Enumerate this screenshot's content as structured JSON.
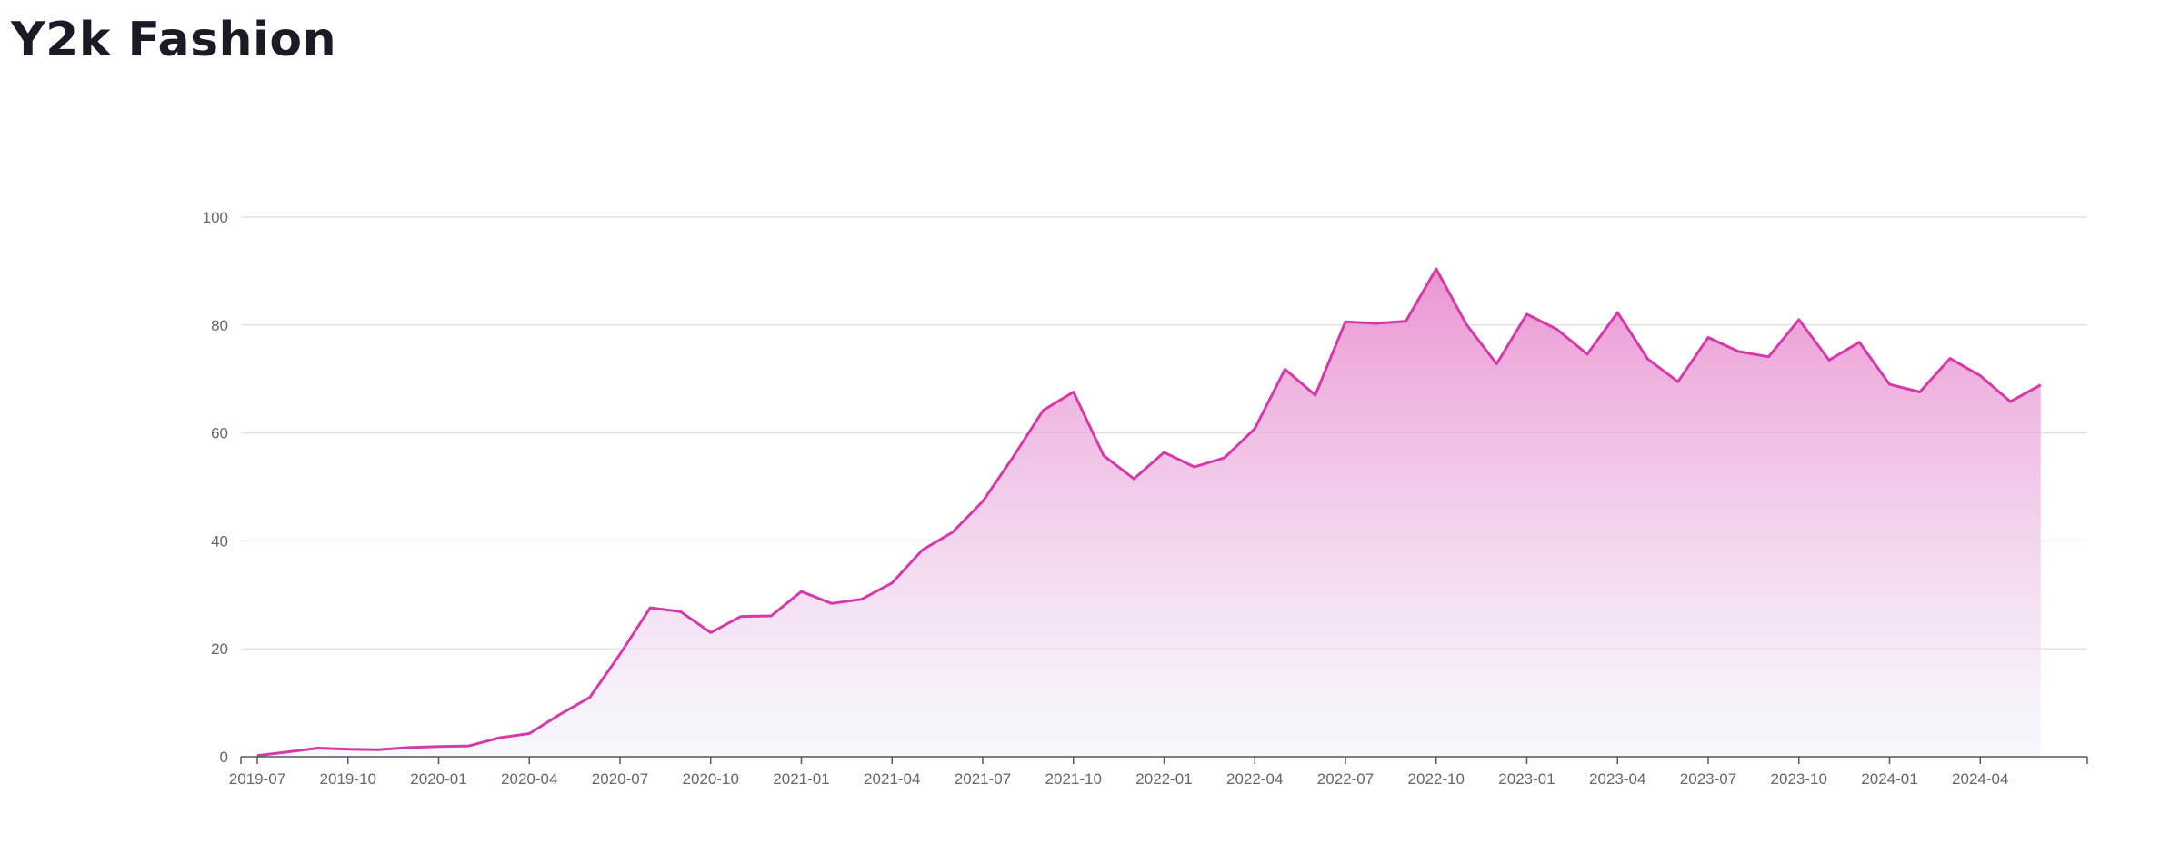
{
  "title": "Y2k Fashion",
  "colors": {
    "line": "#d63aa8",
    "fill_top": "#e98ccf",
    "fill_bottom": "#f3f3fb",
    "grid": "#e3e3e8",
    "axis": "#555560"
  },
  "chart_data": {
    "type": "area",
    "title": "Y2k Fashion",
    "xlabel": "",
    "ylabel": "",
    "ylim": [
      0,
      100
    ],
    "yticks": [
      0,
      20,
      40,
      60,
      80,
      100
    ],
    "xlim": [
      "2019-07",
      "2024-07"
    ],
    "xticks": [
      "2019-07",
      "2019-10",
      "2020-01",
      "2020-04",
      "2020-07",
      "2020-10",
      "2021-01",
      "2021-04",
      "2021-07",
      "2021-10",
      "2022-01",
      "2022-04",
      "2022-07",
      "2022-10",
      "2023-01",
      "2023-04",
      "2023-07",
      "2023-10",
      "2024-01",
      "2024-04"
    ],
    "grid": true,
    "legend": "none",
    "x": [
      "2019-07",
      "2019-08",
      "2019-09",
      "2019-10",
      "2019-11",
      "2019-12",
      "2020-01",
      "2020-02",
      "2020-03",
      "2020-04",
      "2020-05",
      "2020-06",
      "2020-07",
      "2020-08",
      "2020-09",
      "2020-10",
      "2020-11",
      "2020-12",
      "2021-01",
      "2021-02",
      "2021-03",
      "2021-04",
      "2021-05",
      "2021-06",
      "2021-07",
      "2021-08",
      "2021-09",
      "2021-10",
      "2021-11",
      "2021-12",
      "2022-01",
      "2022-02",
      "2022-03",
      "2022-04",
      "2022-05",
      "2022-06",
      "2022-07",
      "2022-08",
      "2022-09",
      "2022-10",
      "2022-11",
      "2022-12",
      "2023-01",
      "2023-02",
      "2023-03",
      "2023-04",
      "2023-05",
      "2023-06",
      "2023-07",
      "2023-08",
      "2023-09",
      "2023-10",
      "2023-11",
      "2023-12",
      "2024-01",
      "2024-02",
      "2024-03",
      "2024-04",
      "2024-05",
      "2024-06"
    ],
    "y": [
      0.2,
      0.9,
      1.6,
      1.4,
      1.3,
      1.7,
      1.9,
      2.0,
      3.5,
      4.3,
      7.8,
      11.0,
      19.0,
      27.6,
      26.9,
      23.0,
      26.0,
      26.1,
      30.6,
      28.4,
      29.2,
      32.2,
      38.3,
      41.6,
      47.3,
      55.5,
      64.2,
      67.6,
      55.8,
      51.5,
      56.4,
      53.7,
      55.4,
      60.8,
      71.8,
      67.0,
      80.6,
      80.3,
      80.7,
      90.4,
      80.1,
      72.8,
      82.0,
      79.2,
      74.6,
      82.3,
      73.7,
      69.5,
      77.7,
      75.1,
      74.1,
      81.0,
      73.5,
      76.8,
      69.0,
      67.6,
      73.8,
      70.6,
      65.8,
      68.9
    ]
  }
}
